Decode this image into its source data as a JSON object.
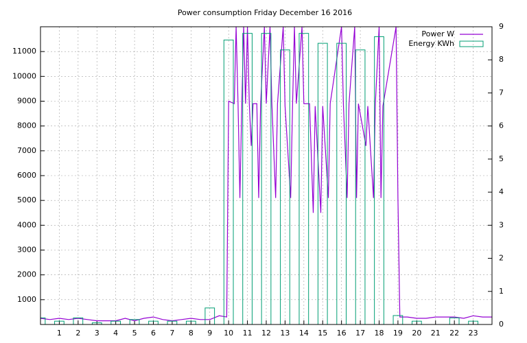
{
  "chart_data": {
    "type": "line",
    "title": "Power consumption Friday December 16 2016",
    "xlim": [
      0,
      24
    ],
    "xticks": [
      1,
      2,
      3,
      4,
      5,
      6,
      7,
      8,
      9,
      10,
      11,
      12,
      13,
      14,
      15,
      16,
      17,
      18,
      19,
      20,
      21,
      22,
      23
    ],
    "ylim": [
      0,
      12000
    ],
    "yticks": [
      1000,
      2000,
      3000,
      4000,
      5000,
      6000,
      7000,
      8000,
      9000,
      10000,
      11000
    ],
    "y2lim": [
      0,
      9
    ],
    "y2ticks": [
      0,
      1,
      2,
      3,
      4,
      5,
      6,
      7,
      8,
      9
    ],
    "grid": true,
    "legend": "top-right",
    "series": [
      {
        "name": "Power W",
        "type": "line",
        "color": "#9400d3",
        "x": [
          0,
          0.5,
          1,
          1.5,
          2,
          2.5,
          3,
          3.5,
          4,
          4.5,
          5,
          5.5,
          6,
          6.5,
          7,
          7.5,
          8,
          8.5,
          9,
          9.5,
          9.9,
          10,
          10.3,
          10.4,
          10.5,
          10.6,
          10.7,
          10.8,
          10.9,
          11,
          11.1,
          11.2,
          11.3,
          11.5,
          11.6,
          11.7,
          11.9,
          12,
          12.2,
          12.3,
          12.5,
          12.6,
          12.9,
          13,
          13.3,
          13.4,
          13.5,
          13.6,
          13.9,
          14,
          14.3,
          14.5,
          14.6,
          14.9,
          15,
          15.3,
          15.4,
          16,
          16.1,
          16.3,
          16.4,
          16.7,
          16.8,
          16.9,
          17.3,
          17.4,
          17.7,
          17.8,
          18,
          18.1,
          18.2,
          18.9,
          19,
          19.1,
          19.5,
          20,
          20.5,
          21,
          22,
          22.5,
          23,
          23.5,
          24
        ],
        "values": [
          250,
          200,
          250,
          200,
          250,
          200,
          150,
          150,
          150,
          250,
          150,
          250,
          300,
          200,
          150,
          200,
          250,
          200,
          200,
          350,
          300,
          9000,
          8900,
          12000,
          8900,
          5100,
          8900,
          12000,
          8900,
          12000,
          8900,
          7200,
          8900,
          8900,
          5100,
          8900,
          12000,
          8900,
          12000,
          8900,
          5100,
          8900,
          12000,
          8800,
          5100,
          8900,
          12000,
          8900,
          12000,
          8900,
          8900,
          4500,
          8800,
          4500,
          8800,
          5100,
          8900,
          12000,
          8900,
          5100,
          8900,
          12000,
          5100,
          8900,
          7200,
          8800,
          5100,
          8900,
          12000,
          5100,
          8800,
          12000,
          5100,
          300,
          300,
          250,
          250,
          300,
          300,
          250,
          350,
          300,
          300
        ]
      },
      {
        "name": "Energy KWh",
        "type": "bar",
        "axis": "y2",
        "color": "#009e73",
        "x": [
          0,
          1,
          2,
          3,
          4,
          5,
          6,
          7,
          8,
          9,
          10,
          11,
          12,
          13,
          14,
          15,
          16,
          17,
          18,
          19,
          20,
          22,
          23
        ],
        "values": [
          0.2,
          0.1,
          0.2,
          0.05,
          0.1,
          0.15,
          0.1,
          0.1,
          0.1,
          0.5,
          8.6,
          8.8,
          8.8,
          8.3,
          8.8,
          8.5,
          8.5,
          8.3,
          8.7,
          0.27,
          0.1,
          0.2,
          0.1
        ]
      }
    ]
  }
}
